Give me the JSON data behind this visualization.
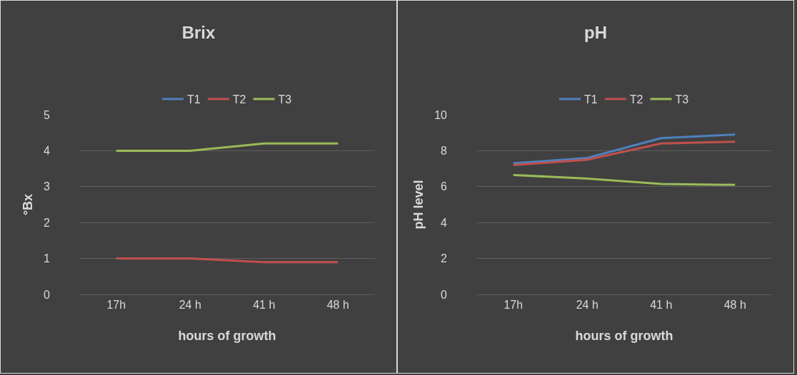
{
  "chart_data": [
    {
      "type": "line",
      "title": "Brix",
      "xlabel": "hours of growth",
      "ylabel": "°Bx",
      "categories": [
        "17h",
        "24 h",
        "41 h",
        "48 h"
      ],
      "series": [
        {
          "name": "T1",
          "color": "#4f81bd",
          "values": [
            null,
            null,
            null,
            null
          ]
        },
        {
          "name": "T2",
          "color": "#c0504d",
          "values": [
            1,
            1,
            0.9,
            0.9
          ]
        },
        {
          "name": "T3",
          "color": "#9bbb59",
          "values": [
            4,
            4,
            4.2,
            4.2
          ]
        }
      ],
      "ylim": [
        0,
        5
      ],
      "yticks": [
        0,
        1,
        2,
        3,
        4,
        5
      ],
      "grid": "y",
      "legend": "top",
      "marker": "none",
      "line_style": "solid"
    },
    {
      "type": "line",
      "title": "pH",
      "xlabel": "hours of growth",
      "ylabel": "pH level",
      "categories": [
        "17h",
        "24 h",
        "41 h",
        "48 h"
      ],
      "series": [
        {
          "name": "T1",
          "color": "#4f81bd",
          "values": [
            7.3,
            7.6,
            8.7,
            8.9
          ]
        },
        {
          "name": "T2",
          "color": "#c0504d",
          "values": [
            7.2,
            7.5,
            8.4,
            8.5
          ]
        },
        {
          "name": "T3",
          "color": "#9bbb59",
          "values": [
            6.65,
            6.45,
            6.15,
            6.1
          ]
        }
      ],
      "ylim": [
        0,
        10
      ],
      "yticks": [
        0,
        2,
        4,
        6,
        8,
        10
      ],
      "grid": "y",
      "legend": "top",
      "marker": "none",
      "line_style": "solid"
    }
  ]
}
